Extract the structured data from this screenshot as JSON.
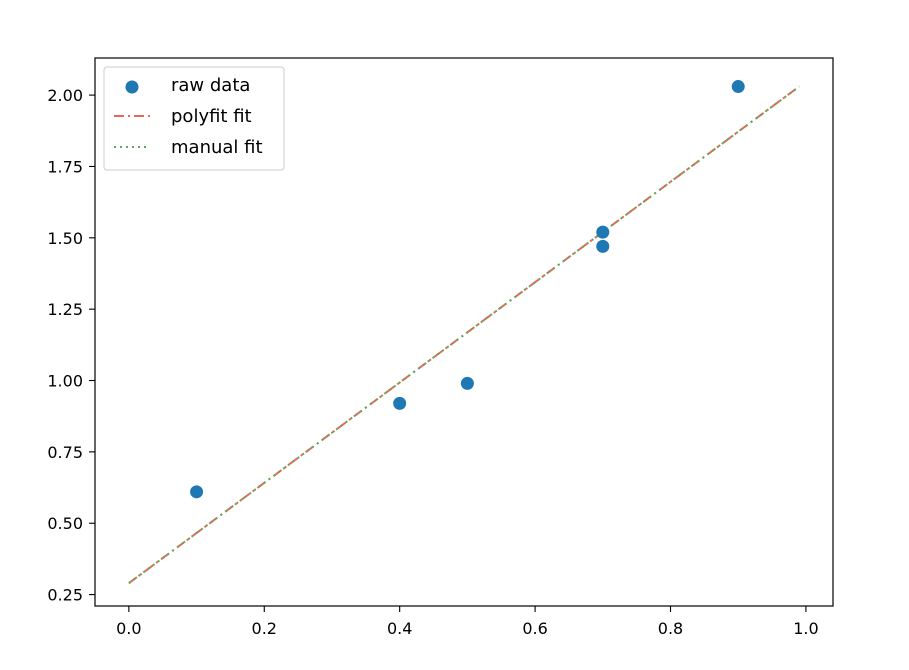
{
  "chart_data": {
    "type": "scatter",
    "title": "",
    "xlabel": "",
    "ylabel": "",
    "xlim": [
      -0.05,
      1.04
    ],
    "ylim": [
      0.21,
      2.13
    ],
    "grid": false,
    "legend_position": "top-left",
    "x_ticks": [
      {
        "value": 0.0,
        "label": "0.0"
      },
      {
        "value": 0.2,
        "label": "0.2"
      },
      {
        "value": 0.4,
        "label": "0.4"
      },
      {
        "value": 0.6,
        "label": "0.6"
      },
      {
        "value": 0.8,
        "label": "0.8"
      },
      {
        "value": 1.0,
        "label": "1.0"
      }
    ],
    "y_ticks": [
      {
        "value": 0.25,
        "label": "0.25"
      },
      {
        "value": 0.5,
        "label": "0.50"
      },
      {
        "value": 0.75,
        "label": "0.75"
      },
      {
        "value": 1.0,
        "label": "1.00"
      },
      {
        "value": 1.25,
        "label": "1.25"
      },
      {
        "value": 1.5,
        "label": "1.50"
      },
      {
        "value": 1.75,
        "label": "1.75"
      },
      {
        "value": 2.0,
        "label": "2.00"
      }
    ],
    "series": [
      {
        "name": "raw data",
        "kind": "scatter",
        "color": "#1f77b4",
        "points": [
          {
            "x": 0.1,
            "y": 0.61
          },
          {
            "x": 0.4,
            "y": 0.92
          },
          {
            "x": 0.5,
            "y": 0.99
          },
          {
            "x": 0.7,
            "y": 1.52
          },
          {
            "x": 0.7,
            "y": 1.47
          },
          {
            "x": 0.9,
            "y": 2.03
          }
        ]
      },
      {
        "name": "polyfit fit",
        "kind": "line",
        "style": "dashdot",
        "color": "#e8665a",
        "points": [
          {
            "x": 0.0,
            "y": 0.29
          },
          {
            "x": 0.99,
            "y": 2.03
          }
        ]
      },
      {
        "name": "manual fit",
        "kind": "line",
        "style": "dotted",
        "color": "#5aab5a",
        "points": [
          {
            "x": 0.0,
            "y": 0.29
          },
          {
            "x": 0.99,
            "y": 2.03
          }
        ]
      }
    ]
  }
}
